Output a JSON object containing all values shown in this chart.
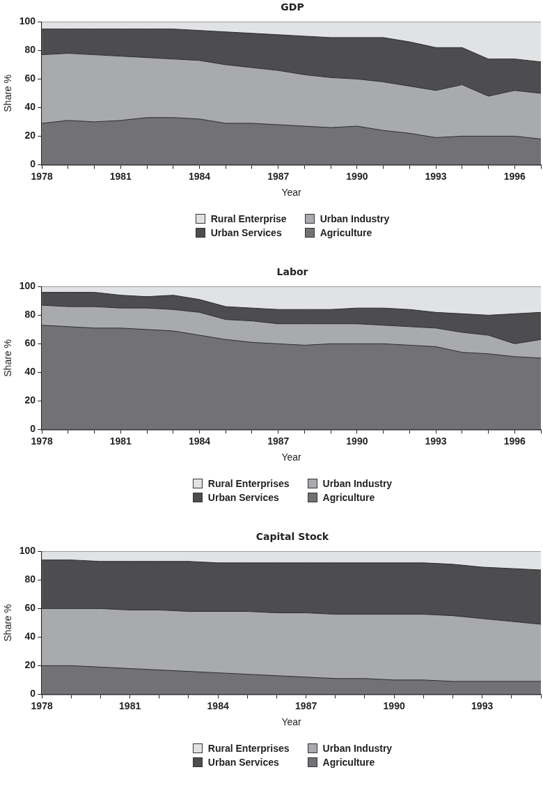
{
  "chart_data": [
    {
      "type": "area",
      "stacked": true,
      "title": "GDP",
      "xlabel": "Year",
      "ylabel": "Share %",
      "x": [
        1978,
        1979,
        1980,
        1981,
        1982,
        1983,
        1984,
        1985,
        1986,
        1987,
        1988,
        1989,
        1990,
        1991,
        1992,
        1993,
        1994,
        1995,
        1996,
        1997
      ],
      "xlim": [
        1978,
        1997
      ],
      "xticks": [
        1978,
        {
          "value": 1979,
          "label": null
        },
        {
          "value": 1980,
          "label": null
        },
        1981,
        {
          "value": 1982,
          "label": null
        },
        {
          "value": 1983,
          "label": null
        },
        1984,
        {
          "value": 1985,
          "label": null
        },
        {
          "value": 1986,
          "label": null
        },
        1987,
        {
          "value": 1988,
          "label": null
        },
        {
          "value": 1989,
          "label": null
        },
        1990,
        {
          "value": 1991,
          "label": null
        },
        {
          "value": 1992,
          "label": null
        },
        1993,
        {
          "value": 1994,
          "label": null
        },
        {
          "value": 1995,
          "label": null
        },
        1996,
        {
          "value": 1997,
          "label": null
        }
      ],
      "ylim": [
        0,
        100
      ],
      "yticks": [
        0,
        20,
        40,
        60,
        80,
        100
      ],
      "grid": false,
      "legend": "bottom",
      "series": [
        {
          "name": "Agriculture",
          "color": "#717176",
          "values": [
            29,
            31,
            30,
            31,
            33,
            33,
            32,
            29,
            29,
            28,
            27,
            26,
            27,
            24,
            22,
            19,
            20,
            20,
            20,
            18
          ]
        },
        {
          "name": "Urban Industry",
          "color": "#a9aaae",
          "values": [
            48,
            47,
            47,
            45,
            42,
            41,
            41,
            41,
            39,
            38,
            36,
            35,
            33,
            34,
            33,
            33,
            36,
            28,
            32,
            32
          ]
        },
        {
          "name": "Urban Services",
          "color": "#4d4d50",
          "values": [
            18,
            17,
            18,
            19,
            20,
            21,
            21,
            23,
            24,
            25,
            27,
            28,
            29,
            31,
            31,
            30,
            26,
            26,
            22,
            22
          ]
        },
        {
          "name": "Rural Enterprise",
          "color": "#e1e2e4",
          "values": [
            5,
            5,
            5,
            5,
            5,
            5,
            6,
            7,
            8,
            9,
            10,
            11,
            11,
            11,
            14,
            18,
            18,
            26,
            26,
            28
          ]
        }
      ]
    },
    {
      "type": "area",
      "stacked": true,
      "title": "Labor",
      "xlabel": "Year",
      "ylabel": "Share %",
      "x": [
        1978,
        1979,
        1980,
        1981,
        1982,
        1983,
        1984,
        1985,
        1986,
        1987,
        1988,
        1989,
        1990,
        1991,
        1992,
        1993,
        1994,
        1995,
        1996,
        1997
      ],
      "xlim": [
        1978,
        1997
      ],
      "xticks": [
        1978,
        {
          "value": 1979,
          "label": null
        },
        {
          "value": 1980,
          "label": null
        },
        1981,
        {
          "value": 1982,
          "label": null
        },
        {
          "value": 1983,
          "label": null
        },
        1984,
        {
          "value": 1985,
          "label": null
        },
        {
          "value": 1986,
          "label": null
        },
        1987,
        {
          "value": 1988,
          "label": null
        },
        {
          "value": 1989,
          "label": null
        },
        1990,
        {
          "value": 1991,
          "label": null
        },
        {
          "value": 1992,
          "label": null
        },
        1993,
        {
          "value": 1994,
          "label": null
        },
        {
          "value": 1995,
          "label": null
        },
        1996,
        {
          "value": 1997,
          "label": null
        }
      ],
      "ylim": [
        0,
        100
      ],
      "yticks": [
        0,
        20,
        40,
        60,
        80,
        100
      ],
      "grid": false,
      "legend": "bottom",
      "series": [
        {
          "name": "Agriculture",
          "color": "#717176",
          "values": [
            73,
            72,
            71,
            71,
            70,
            69,
            66,
            63,
            61,
            60,
            59,
            60,
            60,
            60,
            59,
            58,
            54,
            53,
            51,
            50
          ]
        },
        {
          "name": "Urban Industry",
          "color": "#a9aaae",
          "values": [
            14,
            14,
            15,
            14,
            15,
            15,
            16,
            14,
            15,
            14,
            15,
            14,
            14,
            13,
            13,
            13,
            14,
            13,
            9,
            13
          ]
        },
        {
          "name": "Urban Services",
          "color": "#4d4d50",
          "values": [
            9,
            10,
            10,
            9,
            8,
            10,
            9,
            9,
            9,
            10,
            10,
            10,
            11,
            12,
            12,
            11,
            13,
            14,
            21,
            19
          ]
        },
        {
          "name": "Rural Enterprises",
          "color": "#e1e2e4",
          "values": [
            4,
            4,
            4,
            6,
            7,
            6,
            9,
            14,
            15,
            16,
            16,
            16,
            15,
            15,
            16,
            18,
            19,
            20,
            19,
            18
          ]
        }
      ]
    },
    {
      "type": "area",
      "stacked": true,
      "title": "Capital Stock",
      "xlabel": "Year",
      "ylabel": "Share %",
      "x": [
        1978,
        1979,
        1980,
        1981,
        1982,
        1983,
        1984,
        1985,
        1986,
        1987,
        1988,
        1989,
        1990,
        1991,
        1992,
        1993,
        1994,
        1995
      ],
      "xlim": [
        1978,
        1995
      ],
      "xticks": [
        1978,
        {
          "value": 1979,
          "label": null
        },
        {
          "value": 1980,
          "label": null
        },
        1981,
        {
          "value": 1982,
          "label": null
        },
        {
          "value": 1983,
          "label": null
        },
        1984,
        {
          "value": 1985,
          "label": null
        },
        {
          "value": 1986,
          "label": null
        },
        1987,
        {
          "value": 1988,
          "label": null
        },
        {
          "value": 1989,
          "label": null
        },
        1990,
        {
          "value": 1991,
          "label": null
        },
        {
          "value": 1992,
          "label": null
        },
        1993,
        {
          "value": 1994,
          "label": null
        },
        {
          "value": 1995,
          "label": null
        }
      ],
      "ylim": [
        0,
        100
      ],
      "yticks": [
        0,
        20,
        40,
        60,
        80,
        100
      ],
      "grid": false,
      "legend": "bottom",
      "series": [
        {
          "name": "Agriculture",
          "color": "#717176",
          "values": [
            20,
            20,
            19,
            18,
            17,
            16,
            15,
            14,
            13,
            12,
            11,
            11,
            10,
            10,
            9,
            9,
            9,
            9
          ]
        },
        {
          "name": "Urban Industry",
          "color": "#a9aaae",
          "values": [
            40,
            40,
            41,
            41,
            42,
            42,
            43,
            44,
            44,
            45,
            45,
            45,
            46,
            46,
            46,
            44,
            42,
            40
          ]
        },
        {
          "name": "Urban Services",
          "color": "#4d4d50",
          "values": [
            34,
            34,
            33,
            34,
            34,
            35,
            34,
            34,
            35,
            35,
            36,
            36,
            36,
            36,
            36,
            36,
            37,
            38
          ]
        },
        {
          "name": "Rural Enterprises",
          "color": "#e1e2e4",
          "values": [
            6,
            6,
            7,
            7,
            7,
            7,
            8,
            8,
            8,
            8,
            8,
            8,
            8,
            8,
            9,
            11,
            12,
            13
          ]
        }
      ]
    }
  ]
}
